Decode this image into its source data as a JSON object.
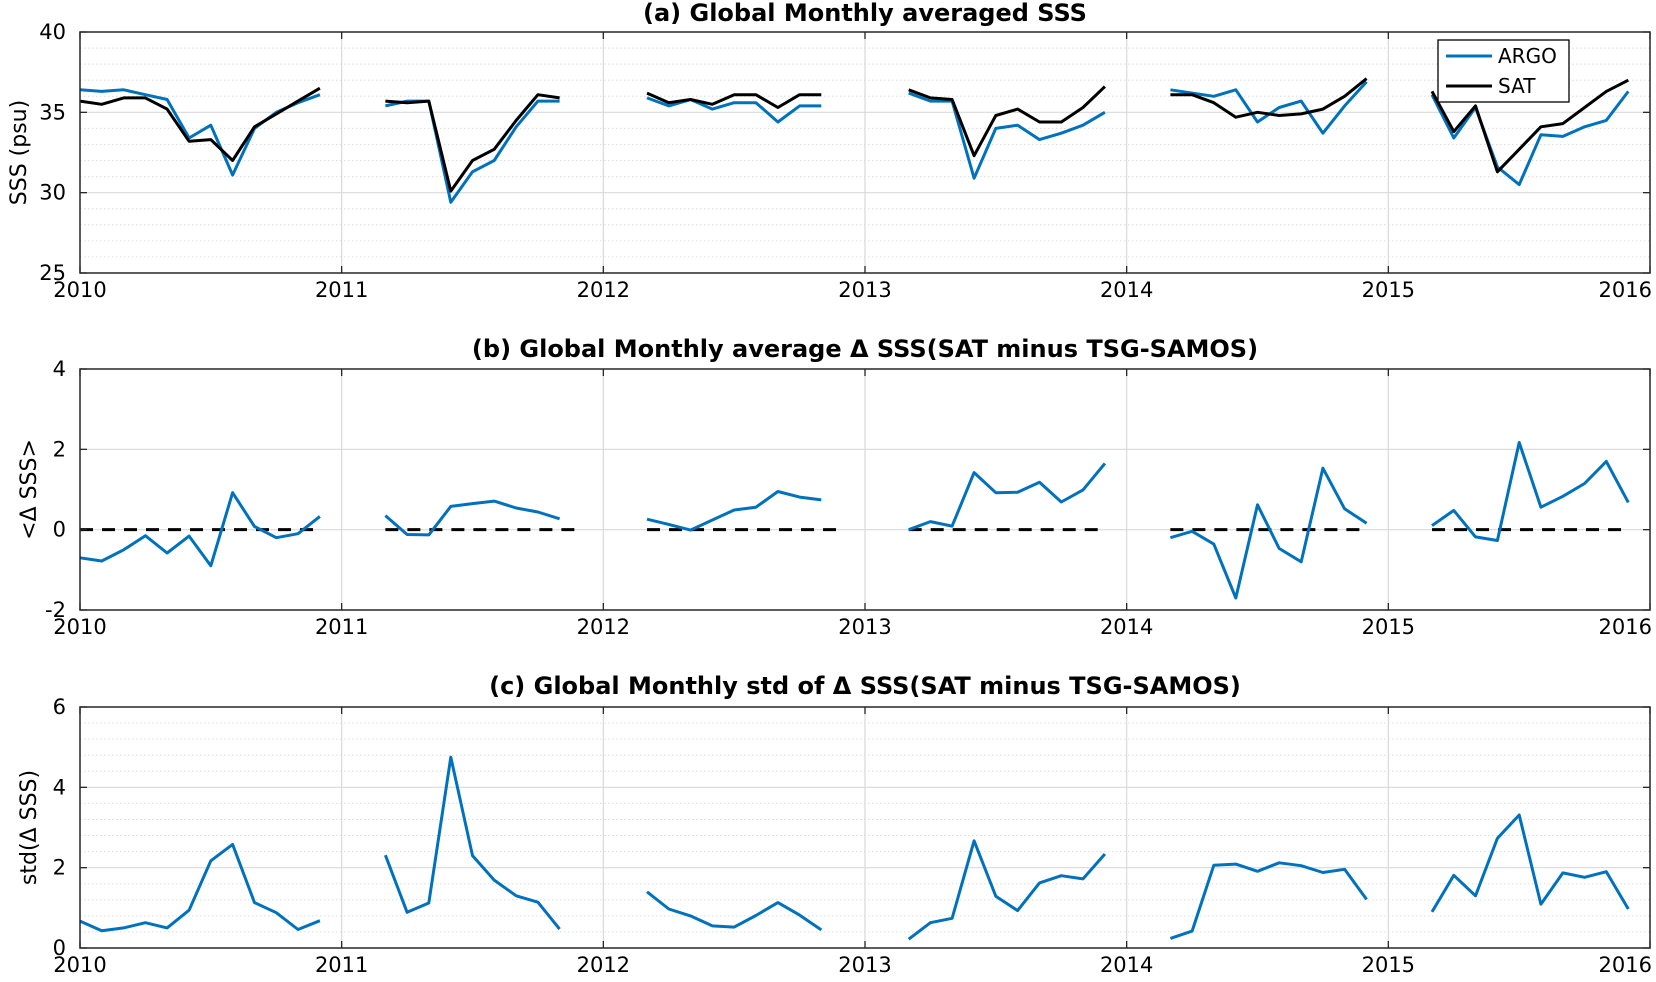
{
  "colors": {
    "argo": "#0072BD",
    "sat": "#000000",
    "grid": "#d9d9d9",
    "axis": "#262626"
  },
  "chart_data": [
    {
      "type": "line",
      "title": "(a) Global Monthly averaged SSS",
      "ylabel": "SSS (psu)",
      "xlim": [
        2010,
        2016
      ],
      "ylim": [
        25,
        40
      ],
      "xticks": [
        2010,
        2011,
        2012,
        2013,
        2014,
        2015,
        2016
      ],
      "xtick_labels": [
        "2010",
        "2011",
        "2012",
        "2013",
        "2014",
        "2015",
        "2016"
      ],
      "yticks": [
        25,
        30,
        35,
        40
      ],
      "ytick_labels": [
        "25",
        "30",
        "35",
        "40"
      ],
      "minor_grid": true,
      "legend": {
        "position": "top-right",
        "entries": [
          "ARGO",
          "SAT"
        ]
      },
      "series": [
        {
          "name": "ARGO",
          "color": "#0072BD",
          "segments": [
            {
              "x": [
                2010.0,
                2010.083,
                2010.167,
                2010.25,
                2010.333,
                2010.417,
                2010.5,
                2010.583,
                2010.667,
                2010.75,
                2010.833,
                2010.917
              ],
              "y": [
                36.4,
                36.3,
                36.4,
                36.1,
                35.8,
                33.4,
                34.2,
                31.1,
                34.0,
                35.0,
                35.6,
                36.1
              ]
            },
            {
              "x": [
                2011.167,
                2011.25,
                2011.333,
                2011.417,
                2011.5,
                2011.583,
                2011.667,
                2011.75,
                2011.833
              ],
              "y": [
                35.4,
                35.7,
                35.7,
                29.4,
                31.3,
                32.0,
                34.1,
                35.7,
                35.7
              ]
            },
            {
              "x": [
                2012.167,
                2012.25,
                2012.333,
                2012.417,
                2012.5,
                2012.583,
                2012.667,
                2012.75,
                2012.833
              ],
              "y": [
                35.9,
                35.4,
                35.8,
                35.2,
                35.6,
                35.6,
                34.4,
                35.4,
                35.4
              ]
            },
            {
              "x": [
                2013.167,
                2013.25,
                2013.333,
                2013.417,
                2013.5,
                2013.583,
                2013.667,
                2013.75,
                2013.833,
                2013.917
              ],
              "y": [
                36.2,
                35.7,
                35.7,
                30.9,
                34.0,
                34.2,
                33.3,
                33.7,
                34.2,
                35.0
              ]
            },
            {
              "x": [
                2014.167,
                2014.25,
                2014.333,
                2014.417,
                2014.5,
                2014.583,
                2014.667,
                2014.75,
                2014.833,
                2014.917
              ],
              "y": [
                36.4,
                36.2,
                36.0,
                36.4,
                34.4,
                35.3,
                35.7,
                33.7,
                35.4,
                36.9
              ]
            },
            {
              "x": [
                2015.167,
                2015.25,
                2015.333,
                2015.417,
                2015.5,
                2015.583,
                2015.667,
                2015.75,
                2015.833,
                2015.917
              ],
              "y": [
                36.1,
                33.4,
                35.3,
                31.6,
                30.5,
                33.6,
                33.5,
                34.1,
                34.5,
                36.3
              ]
            }
          ]
        },
        {
          "name": "SAT",
          "color": "#000000",
          "segments": [
            {
              "x": [
                2010.0,
                2010.083,
                2010.167,
                2010.25,
                2010.333,
                2010.417,
                2010.5,
                2010.583,
                2010.667,
                2010.75,
                2010.833,
                2010.917
              ],
              "y": [
                35.7,
                35.5,
                35.9,
                35.9,
                35.2,
                33.2,
                33.3,
                32.0,
                34.1,
                34.9,
                35.7,
                36.5
              ]
            },
            {
              "x": [
                2011.167,
                2011.25,
                2011.333,
                2011.417,
                2011.5,
                2011.583,
                2011.667,
                2011.75,
                2011.833
              ],
              "y": [
                35.7,
                35.6,
                35.7,
                30.1,
                32.0,
                32.7,
                34.5,
                36.1,
                35.9
              ]
            },
            {
              "x": [
                2012.167,
                2012.25,
                2012.333,
                2012.417,
                2012.5,
                2012.583,
                2012.667,
                2012.75,
                2012.833
              ],
              "y": [
                36.2,
                35.6,
                35.8,
                35.5,
                36.1,
                36.1,
                35.3,
                36.1,
                36.1
              ]
            },
            {
              "x": [
                2013.167,
                2013.25,
                2013.333,
                2013.417,
                2013.5,
                2013.583,
                2013.667,
                2013.75,
                2013.833,
                2013.917
              ],
              "y": [
                36.4,
                35.9,
                35.8,
                32.3,
                34.8,
                35.2,
                34.4,
                34.4,
                35.3,
                36.6
              ]
            },
            {
              "x": [
                2014.167,
                2014.25,
                2014.333,
                2014.417,
                2014.5,
                2014.583,
                2014.667,
                2014.75,
                2014.833,
                2014.917
              ],
              "y": [
                36.1,
                36.1,
                35.6,
                34.7,
                35.0,
                34.8,
                34.9,
                35.2,
                36.0,
                37.1
              ]
            },
            {
              "x": [
                2015.167,
                2015.25,
                2015.333,
                2015.417,
                2015.5,
                2015.583,
                2015.667,
                2015.75,
                2015.833,
                2015.917
              ],
              "y": [
                36.3,
                33.8,
                35.4,
                31.3,
                32.7,
                34.1,
                34.3,
                35.3,
                36.3,
                37.0
              ]
            }
          ]
        }
      ]
    },
    {
      "type": "line",
      "title": "(b) Global Monthly average Δ SSS(SAT minus TSG-SAMOS)",
      "ylabel": "<Δ SSS>",
      "xlim": [
        2010,
        2016
      ],
      "ylim": [
        -2,
        4
      ],
      "xticks": [
        2010,
        2011,
        2012,
        2013,
        2014,
        2015,
        2016
      ],
      "xtick_labels": [
        "2010",
        "2011",
        "2012",
        "2013",
        "2014",
        "2015",
        "2016"
      ],
      "yticks": [
        -2,
        0,
        2,
        4
      ],
      "ytick_labels": [
        "-2",
        "0",
        "2",
        "4"
      ],
      "minor_grid": false,
      "zero_reference": {
        "y": 0,
        "style": "dashed",
        "color": "#000000",
        "segments": [
          [
            2010.0,
            2010.917
          ],
          [
            2011.167,
            2011.917
          ],
          [
            2012.167,
            2012.917
          ],
          [
            2013.167,
            2013.917
          ],
          [
            2014.167,
            2014.917
          ],
          [
            2015.167,
            2015.917
          ]
        ]
      },
      "series": [
        {
          "color": "#0072BD",
          "segments": [
            {
              "x": [
                2010.0,
                2010.083,
                2010.167,
                2010.25,
                2010.333,
                2010.417,
                2010.5,
                2010.583,
                2010.667,
                2010.75,
                2010.833,
                2010.917
              ],
              "y": [
                -0.7,
                -0.78,
                -0.5,
                -0.15,
                -0.58,
                -0.16,
                -0.9,
                0.92,
                0.08,
                -0.2,
                -0.1,
                0.33
              ]
            },
            {
              "x": [
                2011.167,
                2011.25,
                2011.333,
                2011.417,
                2011.5,
                2011.583,
                2011.667,
                2011.75,
                2011.833
              ],
              "y": [
                0.35,
                -0.12,
                -0.13,
                0.58,
                0.65,
                0.71,
                0.54,
                0.44,
                0.27
              ]
            },
            {
              "x": [
                2012.167,
                2012.25,
                2012.333,
                2012.417,
                2012.5,
                2012.583,
                2012.667,
                2012.75,
                2012.833
              ],
              "y": [
                0.26,
                0.13,
                -0.01,
                0.24,
                0.49,
                0.56,
                0.95,
                0.81,
                0.74
              ]
            },
            {
              "x": [
                2013.167,
                2013.25,
                2013.333,
                2013.417,
                2013.5,
                2013.583,
                2013.667,
                2013.75,
                2013.833,
                2013.917
              ],
              "y": [
                0.0,
                0.2,
                0.09,
                1.42,
                0.92,
                0.93,
                1.18,
                0.69,
                0.99,
                1.65
              ]
            },
            {
              "x": [
                2014.167,
                2014.25,
                2014.333,
                2014.417,
                2014.5,
                2014.583,
                2014.667,
                2014.75,
                2014.833,
                2014.917
              ],
              "y": [
                -0.2,
                -0.04,
                -0.36,
                -1.7,
                0.62,
                -0.47,
                -0.8,
                1.53,
                0.52,
                0.16
              ]
            },
            {
              "x": [
                2015.167,
                2015.25,
                2015.333,
                2015.417,
                2015.5,
                2015.583,
                2015.667,
                2015.75,
                2015.833,
                2015.917
              ],
              "y": [
                0.1,
                0.48,
                -0.18,
                -0.27,
                2.17,
                0.56,
                0.83,
                1.15,
                1.7,
                0.68
              ]
            }
          ]
        }
      ]
    },
    {
      "type": "line",
      "title": "(c) Global Monthly std of Δ SSS(SAT minus TSG-SAMOS)",
      "ylabel": "std(Δ SSS)",
      "xlim": [
        2010,
        2016
      ],
      "ylim": [
        0,
        6
      ],
      "xticks": [
        2010,
        2011,
        2012,
        2013,
        2014,
        2015,
        2016
      ],
      "xtick_labels": [
        "2010",
        "2011",
        "2012",
        "2013",
        "2014",
        "2015",
        "2016"
      ],
      "yticks": [
        0,
        2,
        4,
        6
      ],
      "ytick_labels": [
        "0",
        "2",
        "4",
        "6"
      ],
      "minor_grid": true,
      "series": [
        {
          "color": "#0072BD",
          "segments": [
            {
              "x": [
                2010.0,
                2010.083,
                2010.167,
                2010.25,
                2010.333,
                2010.417,
                2010.5,
                2010.583,
                2010.667,
                2010.75,
                2010.833,
                2010.917
              ],
              "y": [
                0.67,
                0.43,
                0.5,
                0.63,
                0.5,
                0.94,
                2.17,
                2.58,
                1.13,
                0.88,
                0.46,
                0.68
              ]
            },
            {
              "x": [
                2011.167,
                2011.25,
                2011.333,
                2011.417,
                2011.5,
                2011.583,
                2011.667,
                2011.75,
                2011.833
              ],
              "y": [
                2.31,
                0.89,
                1.12,
                4.75,
                2.3,
                1.69,
                1.3,
                1.14,
                0.47
              ]
            },
            {
              "x": [
                2012.167,
                2012.25,
                2012.333,
                2012.417,
                2012.5,
                2012.583,
                2012.667,
                2012.75,
                2012.833
              ],
              "y": [
                1.4,
                0.97,
                0.8,
                0.55,
                0.52,
                0.81,
                1.13,
                0.82,
                0.45
              ]
            },
            {
              "x": [
                2013.167,
                2013.25,
                2013.333,
                2013.417,
                2013.5,
                2013.583,
                2013.667,
                2013.75,
                2013.833,
                2013.917
              ],
              "y": [
                0.22,
                0.63,
                0.74,
                2.67,
                1.29,
                0.93,
                1.62,
                1.8,
                1.72,
                2.34
              ]
            },
            {
              "x": [
                2014.167,
                2014.25,
                2014.333,
                2014.417,
                2014.5,
                2014.583,
                2014.667,
                2014.75,
                2014.833,
                2014.917
              ],
              "y": [
                0.24,
                0.42,
                2.06,
                2.09,
                1.91,
                2.12,
                2.05,
                1.88,
                1.96,
                1.21
              ]
            },
            {
              "x": [
                2015.167,
                2015.25,
                2015.333,
                2015.417,
                2015.5,
                2015.583,
                2015.667,
                2015.75,
                2015.833,
                2015.917
              ],
              "y": [
                0.9,
                1.81,
                1.3,
                2.73,
                3.31,
                1.09,
                1.87,
                1.76,
                1.9,
                0.97
              ]
            }
          ]
        }
      ]
    }
  ]
}
